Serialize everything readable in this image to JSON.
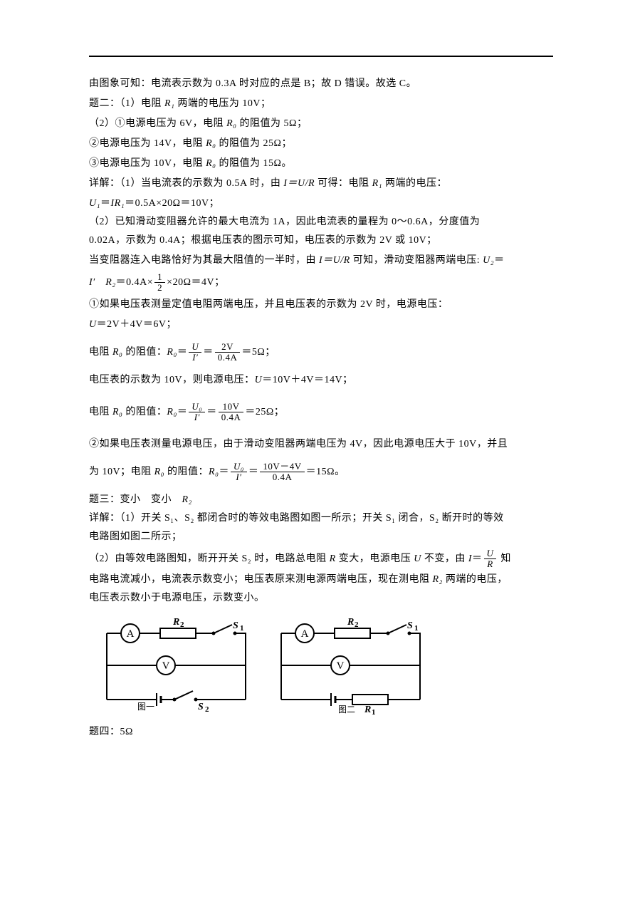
{
  "text": {
    "p1": "由图象可知：电流表示数为 0.3A 时对应的点是 B；故 D 错误。故选 C。",
    "q2_head": "题二：（1）电阻 ",
    "q2_head2": " 两端的电压为 10V；",
    "q2_l1a": "（2）①电源电压为 6V，电阻 ",
    "q2_l1b": " 的阻值为 5Ω；",
    "q2_l2a": "②电源电压为 14V，电阻 ",
    "q2_l2b": " 的阻值为 25Ω；",
    "q2_l3a": "③电源电压为 10V，电阻 ",
    "q2_l3b": " 的阻值为 15Ω。",
    "detail1a": "详解：（1）当电流表的示数为 0.5A 时，由 ",
    "detail1b": " 可得：电阻 ",
    "detail1c": " 两端的电压：",
    "u1_eq": "＝0.5A×20Ω＝10V；",
    "d2a": "（2）已知滑动变阻器允许的最大电流为 1A，因此电流表的量程为 0～0.6A，分度值为",
    "d2b": "0.02A，示数为 0.4A；根据电压表的图示可知，电压表的示数为 2V 或 10V；",
    "d3a": "当变阻器连入电路恰好为其最大阻值的一半时，由 ",
    "d3b": " 可知，滑动变阻器两端电压: ",
    "d3c": "＝",
    "d3eq": "＝0.4A×",
    "d3eq2": "×20Ω＝4V；",
    "d4": "①如果电压表测量定值电阻两端电压，并且电压表的示数为 2V 时，电源电压：",
    "d5": "＝2V＋4V＝6V；",
    "d6a": "电阻 ",
    "d6b": " 的阻值：",
    "d6eq": "＝5Ω；",
    "d7a": "电压表的示数为 10V，则电源电压：",
    "d7b": "＝10V＋4V＝14V；",
    "d8eq": "＝25Ω；",
    "d9a": "②如果电压表测量电源电压，由于滑动变阻器两端电压为 4V，因此电源电压大于 10V，并且",
    "d10a": "为 10V；电阻 ",
    "d10b": " 的阻值：",
    "d10eq": "＝15Ω。",
    "q3a": "题三：变小　变小　",
    "q3det1": "详解：（1）开关 S₁、S₂ 都闭合时的等效电路图如图一所示；开关 S₁ 闭合，S₂ 断开时的等效",
    "q3det1b": "电路图如图二所示；",
    "q3det2a": "（2）由等效电路图知，断开开关 S₂ 时，电路总电阻 ",
    "q3det2b": " 变大，电源电压 ",
    "q3det2c": " 不变，由 ",
    "q3det2d": " 知",
    "q3det3a": "电路电流减小，电流表示数变小；电压表原来测电源两端电压，现在测电阻 ",
    "q3det3b": " 两端的电压，",
    "q3det4": "电压表示数小于电源电压，示数变小。",
    "q4": "题四：5Ω"
  },
  "sym": {
    "R1": "R₁",
    "R0": "R₀",
    "R2": "R₂",
    "R": "R",
    "U": "U",
    "U1": "U₁",
    "U2": "U₂",
    "U0": "U₀",
    "I": "I",
    "Ip": "I′",
    "IUR": "I＝U/R",
    "IR1": "IR₁"
  },
  "frac": {
    "half_num": "1",
    "half_den": "2",
    "U_num": "U",
    "Iprime_den": "I′",
    "v2": "2V",
    "a04": "0.4A",
    "U0_num": "U₀",
    "v10": "10V",
    "v10m4": "10V－4V",
    "U_den_R": "R"
  },
  "diagram": {
    "A": "A",
    "V": "V",
    "R2": "R₂",
    "R1": "R₁",
    "S1": "S₁",
    "S2": "S₂",
    "fig1": "图一",
    "fig2": "图二",
    "stroke": "#000000",
    "stroke_width": 2,
    "font_family": "Times New Roman",
    "font_size": 15,
    "label_font_size": 14,
    "sub_font_size": 11
  }
}
